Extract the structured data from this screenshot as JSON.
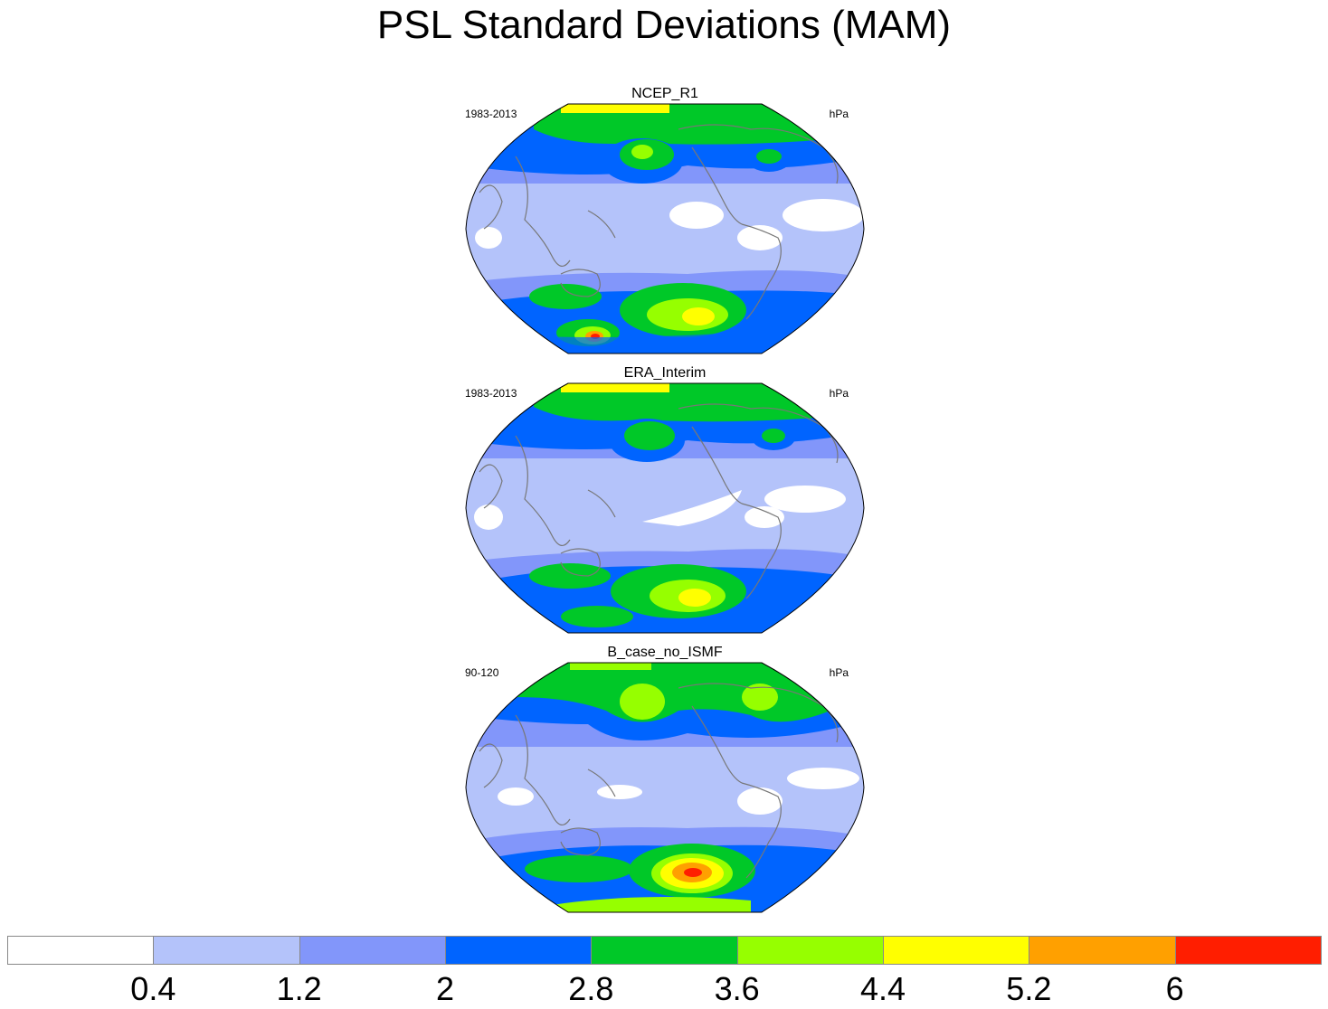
{
  "title": "PSL Standard Deviations (MAM)",
  "panels": [
    {
      "title": "NCEP_R1",
      "period": "1983-2013",
      "units": "hPa"
    },
    {
      "title": "ERA_Interim",
      "period": "1983-2013",
      "units": "hPa"
    },
    {
      "title": "B_case_no_ISMF",
      "period": "90-120",
      "units": "hPa"
    }
  ],
  "colorbar": {
    "levels": [
      "0.4",
      "1.2",
      "2",
      "2.8",
      "3.6",
      "4.4",
      "5.2",
      "6"
    ],
    "colors": [
      "#ffffff",
      "#b4c3fa",
      "#8296fa",
      "#0064ff",
      "#00c828",
      "#96ff00",
      "#ffff00",
      "#ffa000",
      "#ff1e00"
    ]
  }
}
